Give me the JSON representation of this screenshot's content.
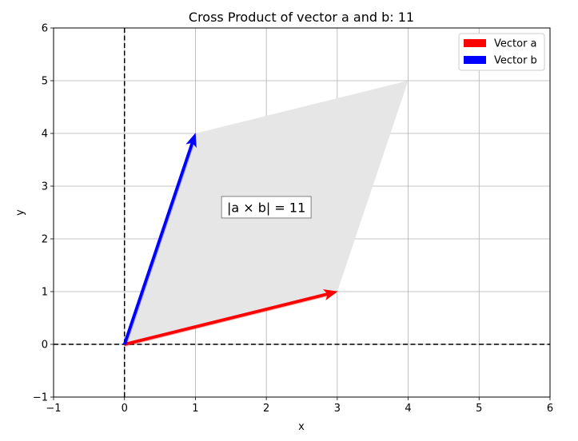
{
  "chart_data": {
    "type": "vector",
    "title": "Cross Product of vector a and b: 11",
    "xlabel": "x",
    "ylabel": "y",
    "xlim": [
      -1,
      6
    ],
    "ylim": [
      -1,
      6
    ],
    "xticks": [
      -1,
      0,
      1,
      2,
      3,
      4,
      5,
      6
    ],
    "yticks": [
      -1,
      0,
      1,
      2,
      3,
      4,
      5,
      6
    ],
    "xtick_labels": [
      "−1",
      "0",
      "1",
      "2",
      "3",
      "4",
      "5",
      "6"
    ],
    "ytick_labels": [
      "−1",
      "0",
      "1",
      "2",
      "3",
      "4",
      "5",
      "6"
    ],
    "grid": true,
    "legend_position": "upper-right",
    "vectors": [
      {
        "name": "Vector a",
        "origin": [
          0,
          0
        ],
        "end": [
          3,
          1
        ],
        "color": "#ff0000"
      },
      {
        "name": "Vector b",
        "origin": [
          0,
          0
        ],
        "end": [
          1,
          4
        ],
        "color": "#0000ff"
      }
    ],
    "parallelogram": {
      "vertices": [
        [
          0,
          0
        ],
        [
          3,
          1
        ],
        [
          4,
          5
        ],
        [
          1,
          4
        ]
      ],
      "color": "#e6e6e6"
    },
    "reference_lines": [
      {
        "orientation": "horizontal",
        "value": 0,
        "style": "dashed",
        "color": "#000000"
      },
      {
        "orientation": "vertical",
        "value": 0,
        "style": "dashed",
        "color": "#000000"
      }
    ],
    "annotation": {
      "text": "|a × b| = 11",
      "position": [
        2.0,
        2.6
      ]
    }
  }
}
